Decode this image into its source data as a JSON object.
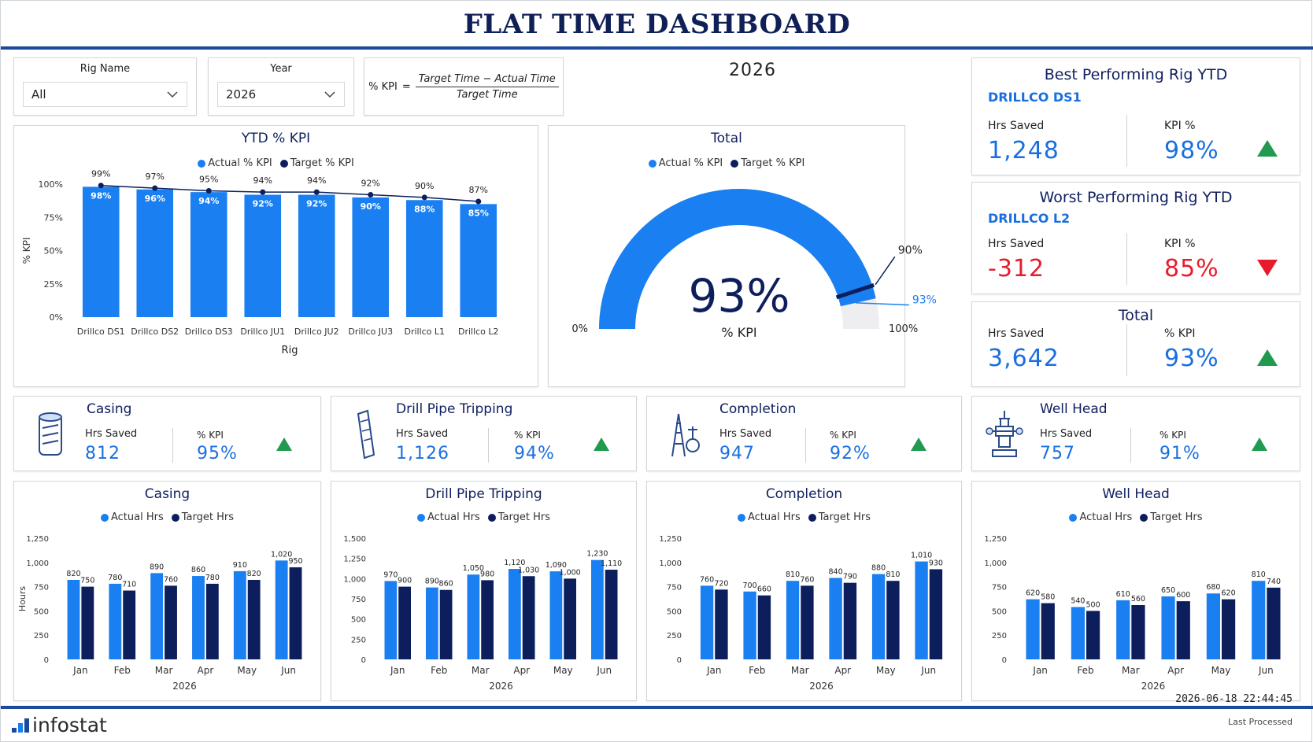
{
  "header": {
    "title": "FLAT TIME DASHBOARD"
  },
  "filters": {
    "rig_name": {
      "label": "Rig Name",
      "value": "All"
    },
    "year": {
      "label": "Year",
      "value": "2026"
    }
  },
  "formula": {
    "prefix": "% KPI",
    "equals": "=",
    "numerator": "Target Time − Actual Time",
    "denominator": "Target Time"
  },
  "year_display": "2026",
  "colors": {
    "actual": "#1a7ff0",
    "target": "#0d1e5c",
    "up": "#1f9a4e",
    "down": "#e81b2c",
    "gauge_bg": "#eeeef0"
  },
  "ytd_chart": {
    "title": "YTD % KPI",
    "legend": [
      "Actual % KPI",
      "Target % KPI"
    ],
    "xlabel": "Rig",
    "ylabel": "% KPI",
    "yticks": [
      "0%",
      "25%",
      "50%",
      "75%",
      "100%"
    ]
  },
  "total_gauge": {
    "title": "Total",
    "legend": [
      "Actual % KPI",
      "Target % KPI"
    ],
    "value_label": "93%",
    "sub_label": "% KPI",
    "min_label": "0%",
    "max_label": "100%",
    "target_label": "90%",
    "actual_label": "93%"
  },
  "best_rig": {
    "title": "Best Performing Rig YTD",
    "rig": "DRILLCO DS1",
    "hrs_label": "Hrs Saved",
    "hrs_value": "1,248",
    "kpi_label": "KPI %",
    "kpi_value": "98%",
    "trend": "up"
  },
  "worst_rig": {
    "title": "Worst Performing Rig YTD",
    "rig": "DRILLCO L2",
    "hrs_label": "Hrs Saved",
    "hrs_value": "-312",
    "kpi_label": "KPI %",
    "kpi_value": "85%",
    "trend": "down"
  },
  "total_card": {
    "title": "Total",
    "hrs_label": "Hrs Saved",
    "hrs_value": "3,642",
    "kpi_label": "% KPI",
    "kpi_value": "93%",
    "trend": "up"
  },
  "operations": [
    {
      "name": "Casing",
      "hrs_label": "Hrs Saved",
      "hrs_value": "812",
      "kpi_label": "% KPI",
      "kpi_value": "95%",
      "icon": "casing-icon"
    },
    {
      "name": "Drill Pipe Tripping",
      "hrs_label": "Hrs Saved",
      "hrs_value": "1,126",
      "kpi_label": "% KPI",
      "kpi_value": "94%",
      "icon": "drill-pipe-icon"
    },
    {
      "name": "Completion",
      "hrs_label": "Hrs Saved",
      "hrs_value": "947",
      "kpi_label": "% KPI",
      "kpi_value": "92%",
      "icon": "completion-icon"
    },
    {
      "name": "Well Head",
      "hrs_label": "Hrs Saved",
      "hrs_value": "757",
      "kpi_label": "% KPI",
      "kpi_value": "91%",
      "icon": "well-head-icon"
    }
  ],
  "monthly_legend": [
    "Actual Hrs",
    "Target Hrs"
  ],
  "footer": {
    "brand": "infostat",
    "timestamp": "2026-06-18 22:44:45",
    "last_processed": "Last Processed"
  },
  "chart_data": [
    {
      "type": "bar",
      "title": "YTD % KPI",
      "xlabel": "Rig",
      "ylabel": "% KPI",
      "ylim": [
        0,
        100
      ],
      "categories": [
        "Drillco DS1",
        "Drillco DS2",
        "Drillco DS3",
        "Drillco JU1",
        "Drillco JU2",
        "Drillco JU3",
        "Drillco L1",
        "Drillco L2"
      ],
      "series": [
        {
          "name": "Actual % KPI",
          "kind": "bar",
          "values": [
            98,
            96,
            94,
            92,
            92,
            90,
            88,
            85
          ],
          "labels": [
            "98%",
            "96%",
            "94%",
            "92%",
            "92%",
            "90%",
            "88%",
            "85%"
          ]
        },
        {
          "name": "Target % KPI",
          "kind": "line",
          "values": [
            99,
            97,
            95,
            94,
            94,
            92,
            90,
            87
          ],
          "labels": [
            "99%",
            "97%",
            "95%",
            "94%",
            "94%",
            "92%",
            "90%",
            "87%"
          ]
        }
      ],
      "legend_position": "top"
    },
    {
      "type": "gauge",
      "title": "Total",
      "min": 0,
      "max": 100,
      "actual": 93,
      "target": 90
    },
    {
      "type": "bar",
      "title": "Casing",
      "xlabel": "2026",
      "ylabel": "Hours",
      "ylim": [
        0,
        1250
      ],
      "yticks": [
        "0",
        "250",
        "500",
        "750",
        "1,000",
        "1,250"
      ],
      "categories": [
        "Jan",
        "Feb",
        "Mar",
        "Apr",
        "May",
        "Jun"
      ],
      "series": [
        {
          "name": "Actual Hrs",
          "values": [
            820,
            780,
            890,
            860,
            910,
            1020
          ],
          "labels": [
            "820",
            "780",
            "890",
            "860",
            "910",
            "1,020"
          ]
        },
        {
          "name": "Target Hrs",
          "values": [
            750,
            710,
            760,
            780,
            820,
            950
          ],
          "labels": [
            "750",
            "710",
            "760",
            "780",
            "820",
            "950"
          ]
        }
      ]
    },
    {
      "type": "bar",
      "title": "Drill Pipe Tripping",
      "xlabel": "2026",
      "ylabel": "",
      "ylim": [
        0,
        1500
      ],
      "yticks": [
        "0",
        "250",
        "500",
        "750",
        "1,000",
        "1,250",
        "1,500"
      ],
      "categories": [
        "Jan",
        "Feb",
        "Mar",
        "Apr",
        "May",
        "Jun"
      ],
      "series": [
        {
          "name": "Actual Hrs",
          "values": [
            970,
            890,
            1050,
            1120,
            1090,
            1230
          ],
          "labels": [
            "970",
            "890",
            "1,050",
            "1,120",
            "1,090",
            "1,230"
          ]
        },
        {
          "name": "Target Hrs",
          "values": [
            900,
            860,
            980,
            1030,
            1000,
            1110
          ],
          "labels": [
            "900",
            "860",
            "980",
            "1,030",
            "1,000",
            "1,110"
          ]
        }
      ]
    },
    {
      "type": "bar",
      "title": "Completion",
      "xlabel": "2026",
      "ylabel": "",
      "ylim": [
        0,
        1250
      ],
      "yticks": [
        "0",
        "250",
        "500",
        "750",
        "1,000",
        "1,250"
      ],
      "categories": [
        "Jan",
        "Feb",
        "Mar",
        "Apr",
        "May",
        "Jun"
      ],
      "series": [
        {
          "name": "Actual Hrs",
          "values": [
            760,
            700,
            810,
            840,
            880,
            1010
          ],
          "labels": [
            "760",
            "700",
            "810",
            "840",
            "880",
            "1,010"
          ]
        },
        {
          "name": "Target Hrs",
          "values": [
            720,
            660,
            760,
            790,
            810,
            930
          ],
          "labels": [
            "720",
            "660",
            "760",
            "790",
            "810",
            "930"
          ]
        }
      ]
    },
    {
      "type": "bar",
      "title": "Well Head",
      "xlabel": "2026",
      "ylabel": "",
      "ylim": [
        0,
        1250
      ],
      "yticks": [
        "0",
        "250",
        "500",
        "750",
        "1,000",
        "1,250"
      ],
      "categories": [
        "Jan",
        "Feb",
        "Mar",
        "Apr",
        "May",
        "Jun"
      ],
      "series": [
        {
          "name": "Actual Hrs",
          "values": [
            620,
            540,
            610,
            650,
            680,
            810
          ],
          "labels": [
            "620",
            "540",
            "610",
            "650",
            "680",
            "810"
          ]
        },
        {
          "name": "Target Hrs",
          "values": [
            580,
            500,
            560,
            600,
            620,
            740
          ],
          "labels": [
            "580",
            "500",
            "560",
            "600",
            "620",
            "740"
          ]
        }
      ]
    }
  ]
}
